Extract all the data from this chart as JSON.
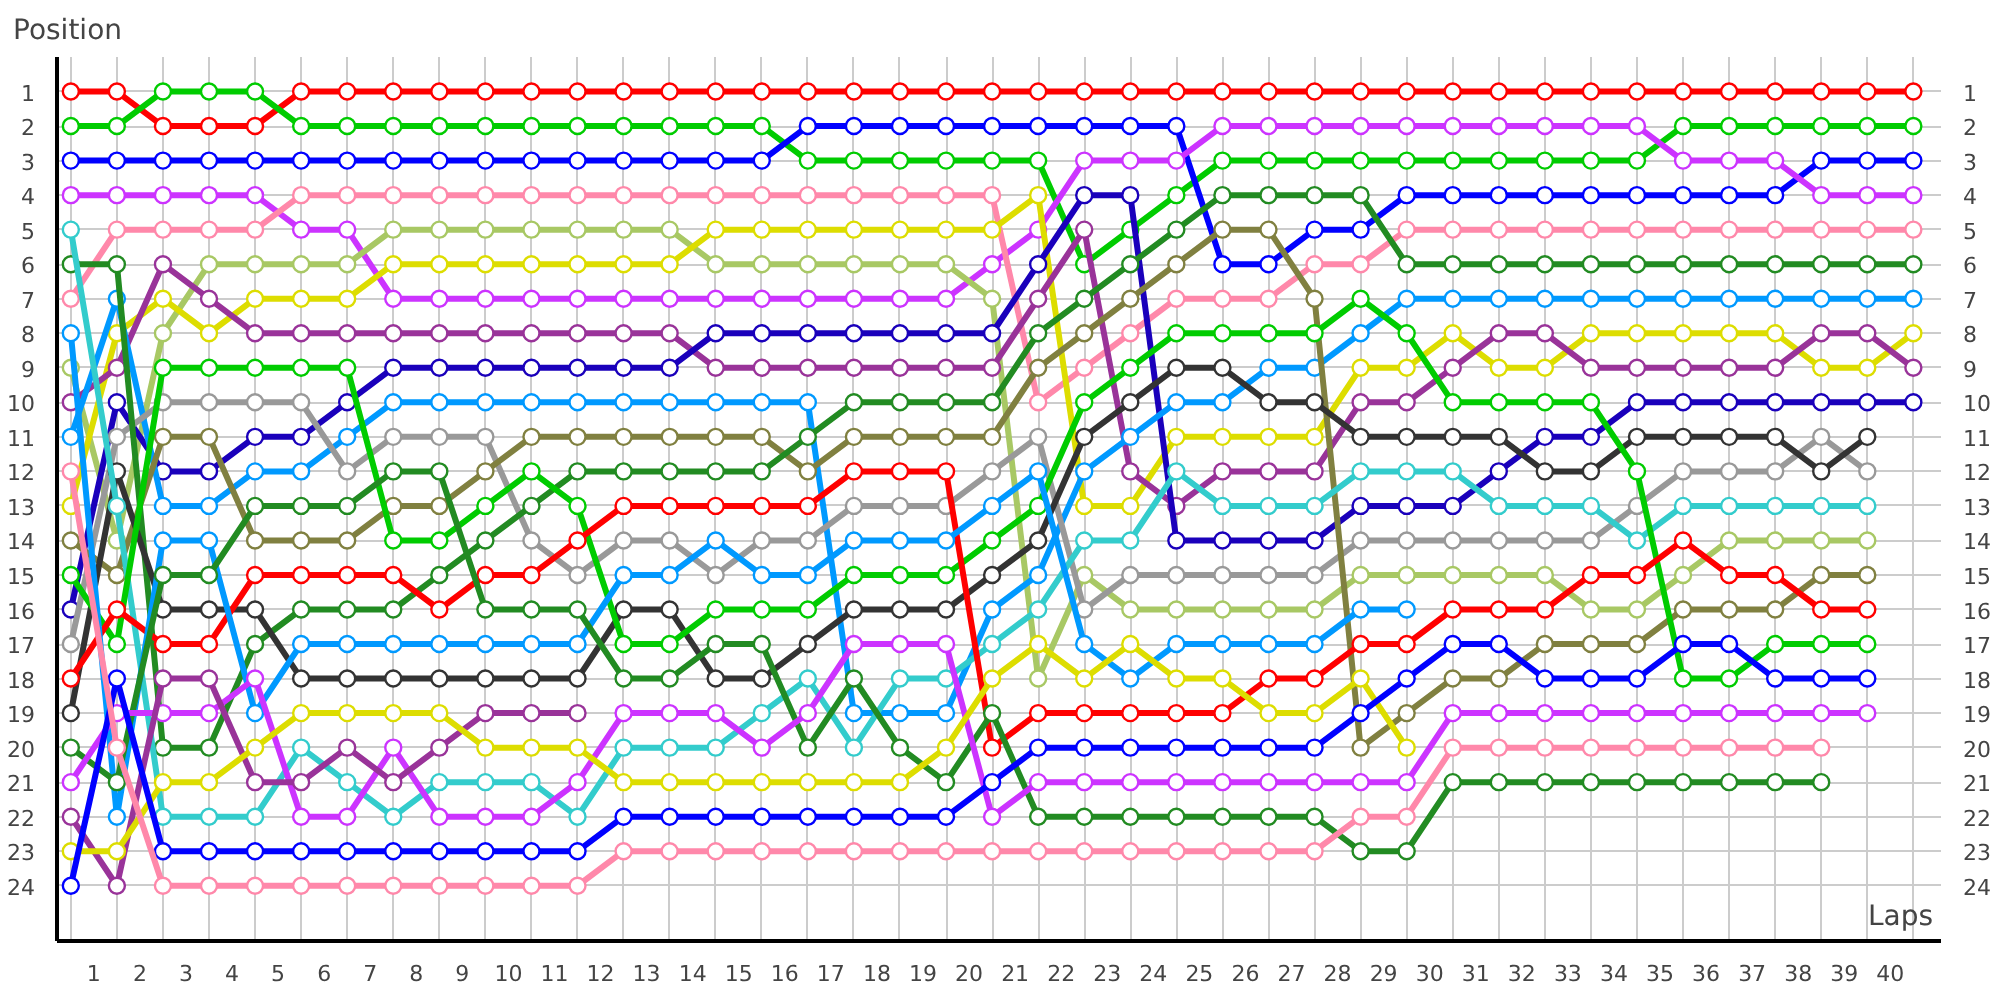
{
  "chart_data": {
    "type": "line",
    "ylabel": "Position",
    "xlabel": "Laps",
    "x": [
      0,
      1,
      2,
      3,
      4,
      5,
      6,
      7,
      8,
      9,
      10,
      11,
      12,
      13,
      14,
      15,
      16,
      17,
      18,
      19,
      20,
      21,
      22,
      23,
      24,
      25,
      26,
      27,
      28,
      29,
      30,
      31,
      32,
      33,
      34,
      35,
      36,
      37,
      38,
      39,
      40
    ],
    "xlim": [
      -0.3,
      40.6
    ],
    "ylim": [
      25.6,
      0
    ],
    "y2lim": [
      25.6,
      0
    ],
    "xticks": [
      {
        "value": 0.5,
        "label": "1"
      },
      {
        "value": 1.5,
        "label": "2"
      },
      {
        "value": 2.5,
        "label": "3"
      },
      {
        "value": 3.5,
        "label": "4"
      },
      {
        "value": 4.5,
        "label": "5"
      },
      {
        "value": 5.5,
        "label": "6"
      },
      {
        "value": 6.5,
        "label": "7"
      },
      {
        "value": 7.5,
        "label": "8"
      },
      {
        "value": 8.5,
        "label": "9"
      },
      {
        "value": 9.5,
        "label": "10"
      },
      {
        "value": 10.5,
        "label": "11"
      },
      {
        "value": 11.5,
        "label": "12"
      },
      {
        "value": 12.5,
        "label": "13"
      },
      {
        "value": 13.5,
        "label": "14"
      },
      {
        "value": 14.5,
        "label": "15"
      },
      {
        "value": 15.5,
        "label": "16"
      },
      {
        "value": 16.5,
        "label": "17"
      },
      {
        "value": 17.5,
        "label": "18"
      },
      {
        "value": 18.5,
        "label": "19"
      },
      {
        "value": 19.5,
        "label": "20"
      },
      {
        "value": 20.5,
        "label": "21"
      },
      {
        "value": 21.5,
        "label": "22"
      },
      {
        "value": 22.5,
        "label": "23"
      },
      {
        "value": 23.5,
        "label": "24"
      },
      {
        "value": 24.5,
        "label": "25"
      },
      {
        "value": 25.5,
        "label": "26"
      },
      {
        "value": 26.5,
        "label": "27"
      },
      {
        "value": 27.5,
        "label": "28"
      },
      {
        "value": 28.5,
        "label": "29"
      },
      {
        "value": 29.5,
        "label": "30"
      },
      {
        "value": 30.5,
        "label": "31"
      },
      {
        "value": 31.5,
        "label": "32"
      },
      {
        "value": 32.5,
        "label": "33"
      },
      {
        "value": 33.5,
        "label": "34"
      },
      {
        "value": 34.5,
        "label": "35"
      },
      {
        "value": 35.5,
        "label": "36"
      },
      {
        "value": 36.5,
        "label": "37"
      },
      {
        "value": 37.5,
        "label": "38"
      },
      {
        "value": 38.5,
        "label": "39"
      },
      {
        "value": 39.5,
        "label": "40"
      },
      {
        "value": 0,
        "label": null
      },
      {
        "value": 1,
        "label": null
      },
      {
        "value": 2,
        "label": null
      },
      {
        "value": 3,
        "label": null
      },
      {
        "value": 4,
        "label": null
      },
      {
        "value": 5,
        "label": null
      },
      {
        "value": 6,
        "label": null
      },
      {
        "value": 7,
        "label": null
      },
      {
        "value": 8,
        "label": null
      },
      {
        "value": 9,
        "label": null
      },
      {
        "value": 10,
        "label": null
      },
      {
        "value": 11,
        "label": null
      },
      {
        "value": 12,
        "label": null
      },
      {
        "value": 13,
        "label": null
      },
      {
        "value": 14,
        "label": null
      },
      {
        "value": 15,
        "label": null
      },
      {
        "value": 16,
        "label": null
      },
      {
        "value": 17,
        "label": null
      },
      {
        "value": 18,
        "label": null
      },
      {
        "value": 19,
        "label": null
      },
      {
        "value": 20,
        "label": null
      },
      {
        "value": 21,
        "label": null
      },
      {
        "value": 22,
        "label": null
      },
      {
        "value": 23,
        "label": null
      },
      {
        "value": 24,
        "label": null
      },
      {
        "value": 25,
        "label": null
      },
      {
        "value": 26,
        "label": null
      },
      {
        "value": 27,
        "label": null
      },
      {
        "value": 28,
        "label": null
      },
      {
        "value": 29,
        "label": null
      },
      {
        "value": 30,
        "label": null
      },
      {
        "value": 31,
        "label": null
      },
      {
        "value": 32,
        "label": null
      },
      {
        "value": 33,
        "label": null
      },
      {
        "value": 34,
        "label": null
      },
      {
        "value": 35,
        "label": null
      },
      {
        "value": 36,
        "label": null
      },
      {
        "value": 37,
        "label": null
      },
      {
        "value": 38,
        "label": null
      },
      {
        "value": 39,
        "label": null
      },
      {
        "value": 40,
        "label": null
      }
    ],
    "yticks": [
      1,
      2,
      3,
      4,
      5,
      6,
      7,
      8,
      9,
      10,
      11,
      12,
      13,
      14,
      15,
      16,
      17,
      18,
      19,
      20,
      21,
      22,
      23,
      24
    ],
    "y2ticks": [
      1,
      2,
      3,
      4,
      5,
      6,
      7,
      8,
      9,
      10,
      11,
      12,
      13,
      14,
      15,
      16,
      17,
      18,
      19,
      20,
      21,
      22,
      23,
      24
    ],
    "grid": true,
    "marker": "circle",
    "line_style": "solid",
    "series": [
      {
        "color": "#ff0000",
        "values": [
          1,
          1,
          2,
          2,
          2,
          1,
          1,
          1,
          1,
          1,
          1,
          1,
          1,
          1,
          1,
          1,
          1,
          1,
          1,
          1,
          1,
          1,
          1,
          1,
          1,
          1,
          1,
          1,
          1,
          1,
          1,
          1,
          1,
          1,
          1,
          1,
          1,
          1,
          1,
          1,
          1
        ]
      },
      {
        "color": "#00cc00",
        "values": [
          2,
          2,
          1,
          1,
          1,
          2,
          2,
          2,
          2,
          2,
          2,
          2,
          2,
          2,
          2,
          2,
          3,
          3,
          3,
          3,
          3,
          3,
          6,
          5,
          4,
          3,
          3,
          3,
          3,
          3,
          3,
          3,
          3,
          3,
          3,
          2,
          2,
          2,
          2,
          2,
          2
        ]
      },
      {
        "color": "#0000ff",
        "values": [
          3,
          3,
          3,
          3,
          3,
          3,
          3,
          3,
          3,
          3,
          3,
          3,
          3,
          3,
          3,
          3,
          2,
          2,
          2,
          2,
          2,
          2,
          2,
          2,
          2,
          6,
          6,
          5,
          5,
          4,
          4,
          4,
          4,
          4,
          4,
          4,
          4,
          4,
          3,
          3,
          3
        ]
      },
      {
        "color": "#cc33ff",
        "values": [
          4,
          4,
          4,
          4,
          4,
          5,
          5,
          7,
          7,
          7,
          7,
          7,
          7,
          7,
          7,
          7,
          7,
          7,
          7,
          7,
          6,
          5,
          3,
          3,
          3,
          2,
          2,
          2,
          2,
          2,
          2,
          2,
          2,
          2,
          2,
          3,
          3,
          3,
          4,
          4,
          4
        ]
      },
      {
        "color": "#ff88aa",
        "values": [
          7,
          5,
          5,
          5,
          5,
          4,
          4,
          4,
          4,
          4,
          4,
          4,
          4,
          4,
          4,
          4,
          4,
          4,
          4,
          4,
          4,
          10,
          9,
          8,
          7,
          7,
          7,
          6,
          6,
          5,
          5,
          5,
          5,
          5,
          5,
          5,
          5,
          5,
          5,
          5,
          5
        ]
      },
      {
        "color": "#a8c864",
        "values": [
          9,
          14,
          8,
          6,
          6,
          6,
          6,
          5,
          5,
          5,
          5,
          5,
          5,
          5,
          6,
          6,
          6,
          6,
          6,
          6,
          7,
          18,
          15,
          16,
          16,
          16,
          16,
          16,
          15,
          15,
          15,
          15,
          15,
          16,
          16,
          15,
          14,
          14,
          14,
          14,
          null
        ]
      },
      {
        "color": "#dddd00",
        "values": [
          13,
          8,
          7,
          8,
          7,
          7,
          7,
          6,
          6,
          6,
          6,
          6,
          6,
          6,
          5,
          5,
          5,
          5,
          5,
          5,
          5,
          4,
          13,
          13,
          11,
          11,
          11,
          11,
          9,
          9,
          8,
          9,
          9,
          8,
          8,
          8,
          8,
          8,
          9,
          9,
          8
        ]
      },
      {
        "color": "#993399",
        "values": [
          10,
          9,
          6,
          7,
          8,
          8,
          8,
          8,
          8,
          8,
          8,
          8,
          8,
          8,
          9,
          9,
          9,
          9,
          9,
          9,
          9,
          7,
          5,
          12,
          13,
          12,
          12,
          12,
          10,
          10,
          9,
          8,
          8,
          9,
          9,
          9,
          9,
          9,
          8,
          8,
          9
        ]
      },
      {
        "color": "#1a00bb",
        "values": [
          16,
          10,
          12,
          12,
          11,
          11,
          10,
          9,
          9,
          9,
          9,
          9,
          9,
          9,
          8,
          8,
          8,
          8,
          8,
          8,
          8,
          6,
          4,
          4,
          14,
          14,
          14,
          14,
          13,
          13,
          13,
          12,
          11,
          11,
          10,
          10,
          10,
          10,
          10,
          10,
          10
        ]
      },
      {
        "color": "#0099ff",
        "values": [
          11,
          7,
          13,
          13,
          12,
          12,
          11,
          10,
          10,
          10,
          10,
          10,
          10,
          10,
          10,
          10,
          10,
          19,
          19,
          19,
          16,
          15,
          12,
          11,
          10,
          10,
          9,
          9,
          8,
          7,
          7,
          7,
          7,
          7,
          7,
          7,
          7,
          7,
          7,
          7,
          7
        ]
      },
      {
        "color": "#999999",
        "values": [
          17,
          11,
          10,
          10,
          10,
          10,
          12,
          11,
          11,
          11,
          14,
          15,
          14,
          14,
          15,
          14,
          14,
          13,
          13,
          13,
          12,
          11,
          16,
          15,
          15,
          15,
          15,
          15,
          14,
          14,
          14,
          14,
          14,
          14,
          13,
          12,
          12,
          12,
          11,
          12,
          null
        ]
      },
      {
        "color": "#808040",
        "values": [
          14,
          15,
          11,
          11,
          14,
          14,
          14,
          13,
          13,
          12,
          11,
          11,
          11,
          11,
          11,
          11,
          12,
          11,
          11,
          11,
          11,
          9,
          8,
          7,
          6,
          5,
          5,
          7,
          20,
          19,
          18,
          18,
          17,
          17,
          17,
          16,
          16,
          16,
          15,
          15,
          null
        ]
      },
      {
        "color": "#228b22",
        "values": [
          6,
          6,
          20,
          20,
          17,
          16,
          16,
          16,
          15,
          14,
          13,
          12,
          12,
          12,
          12,
          12,
          11,
          10,
          10,
          10,
          10,
          8,
          7,
          6,
          5,
          4,
          4,
          4,
          4,
          6,
          6,
          6,
          6,
          6,
          6,
          6,
          6,
          6,
          6,
          6,
          6
        ]
      },
      {
        "color": "#333333",
        "values": [
          19,
          12,
          16,
          16,
          16,
          18,
          18,
          18,
          18,
          18,
          18,
          18,
          16,
          16,
          18,
          18,
          17,
          16,
          16,
          16,
          15,
          14,
          11,
          10,
          9,
          9,
          10,
          10,
          11,
          11,
          11,
          11,
          12,
          12,
          11,
          11,
          11,
          11,
          12,
          11,
          null
        ]
      },
      {
        "color": "#33cccc",
        "values": [
          5,
          13,
          22,
          22,
          22,
          20,
          21,
          22,
          21,
          21,
          21,
          22,
          20,
          20,
          20,
          19,
          18,
          20,
          18,
          18,
          17,
          16,
          14,
          14,
          12,
          13,
          13,
          13,
          12,
          12,
          12,
          13,
          13,
          13,
          14,
          13,
          13,
          13,
          13,
          13,
          null
        ]
      },
      {
        "color": "#00cc00",
        "values": [
          15,
          17,
          9,
          9,
          9,
          9,
          9,
          14,
          14,
          13,
          12,
          13,
          17,
          17,
          16,
          16,
          16,
          15,
          15,
          15,
          14,
          13,
          10,
          9,
          8,
          8,
          8,
          8,
          7,
          8,
          10,
          10,
          10,
          10,
          12,
          18,
          18,
          17,
          17,
          17,
          null
        ]
      },
      {
        "color": "#ff0000",
        "values": [
          18,
          16,
          17,
          17,
          15,
          15,
          15,
          15,
          16,
          15,
          15,
          14,
          13,
          13,
          13,
          13,
          13,
          12,
          12,
          12,
          20,
          19,
          19,
          19,
          19,
          19,
          18,
          18,
          17,
          17,
          16,
          16,
          16,
          15,
          15,
          14,
          15,
          15,
          16,
          16,
          null
        ]
      },
      {
        "color": "#0099ff",
        "values": [
          8,
          22,
          14,
          14,
          19,
          17,
          17,
          17,
          17,
          17,
          17,
          17,
          15,
          15,
          14,
          15,
          15,
          14,
          14,
          14,
          13,
          12,
          17,
          18,
          17,
          17,
          17,
          17,
          16,
          16,
          null,
          null,
          null,
          null,
          null,
          null,
          null,
          null,
          null,
          null,
          null
        ]
      },
      {
        "color": "#228b22",
        "values": [
          20,
          21,
          15,
          15,
          13,
          13,
          13,
          12,
          12,
          16,
          16,
          16,
          18,
          18,
          17,
          17,
          20,
          18,
          20,
          21,
          19,
          22,
          22,
          22,
          22,
          22,
          22,
          22,
          23,
          23,
          21,
          21,
          21,
          21,
          21,
          21,
          21,
          21,
          21,
          null,
          null
        ]
      },
      {
        "color": "#cc33ff",
        "values": [
          21,
          19,
          19,
          19,
          18,
          22,
          22,
          20,
          22,
          22,
          22,
          21,
          19,
          19,
          19,
          20,
          19,
          17,
          17,
          17,
          22,
          21,
          21,
          21,
          21,
          21,
          21,
          21,
          21,
          21,
          19,
          19,
          19,
          19,
          19,
          19,
          19,
          19,
          19,
          19,
          null
        ]
      },
      {
        "color": "#993399",
        "values": [
          22,
          24,
          18,
          18,
          21,
          21,
          20,
          21,
          20,
          19,
          19,
          19,
          null,
          null,
          null,
          null,
          null,
          null,
          null,
          null,
          null,
          null,
          null,
          null,
          null,
          null,
          null,
          null,
          null,
          null,
          null,
          null,
          null,
          null,
          null,
          null,
          null,
          null,
          null,
          null,
          null
        ]
      },
      {
        "color": "#dddd00",
        "values": [
          23,
          23,
          21,
          21,
          20,
          19,
          19,
          19,
          19,
          20,
          20,
          20,
          21,
          21,
          21,
          21,
          21,
          21,
          21,
          20,
          18,
          17,
          18,
          17,
          18,
          18,
          19,
          19,
          18,
          20,
          null,
          null,
          null,
          null,
          null,
          null,
          null,
          null,
          null,
          null,
          null
        ]
      },
      {
        "color": "#0000ff",
        "values": [
          24,
          18,
          23,
          23,
          23,
          23,
          23,
          23,
          23,
          23,
          23,
          23,
          22,
          22,
          22,
          22,
          22,
          22,
          22,
          22,
          21,
          20,
          20,
          20,
          20,
          20,
          20,
          20,
          19,
          18,
          17,
          17,
          18,
          18,
          18,
          17,
          17,
          18,
          18,
          18,
          null
        ]
      },
      {
        "color": "#ff88aa",
        "values": [
          12,
          20,
          24,
          24,
          24,
          24,
          24,
          24,
          24,
          24,
          24,
          24,
          23,
          23,
          23,
          23,
          23,
          23,
          23,
          23,
          23,
          23,
          23,
          23,
          23,
          23,
          23,
          23,
          22,
          22,
          20,
          20,
          20,
          20,
          20,
          20,
          20,
          20,
          20,
          null,
          null
        ]
      }
    ]
  }
}
